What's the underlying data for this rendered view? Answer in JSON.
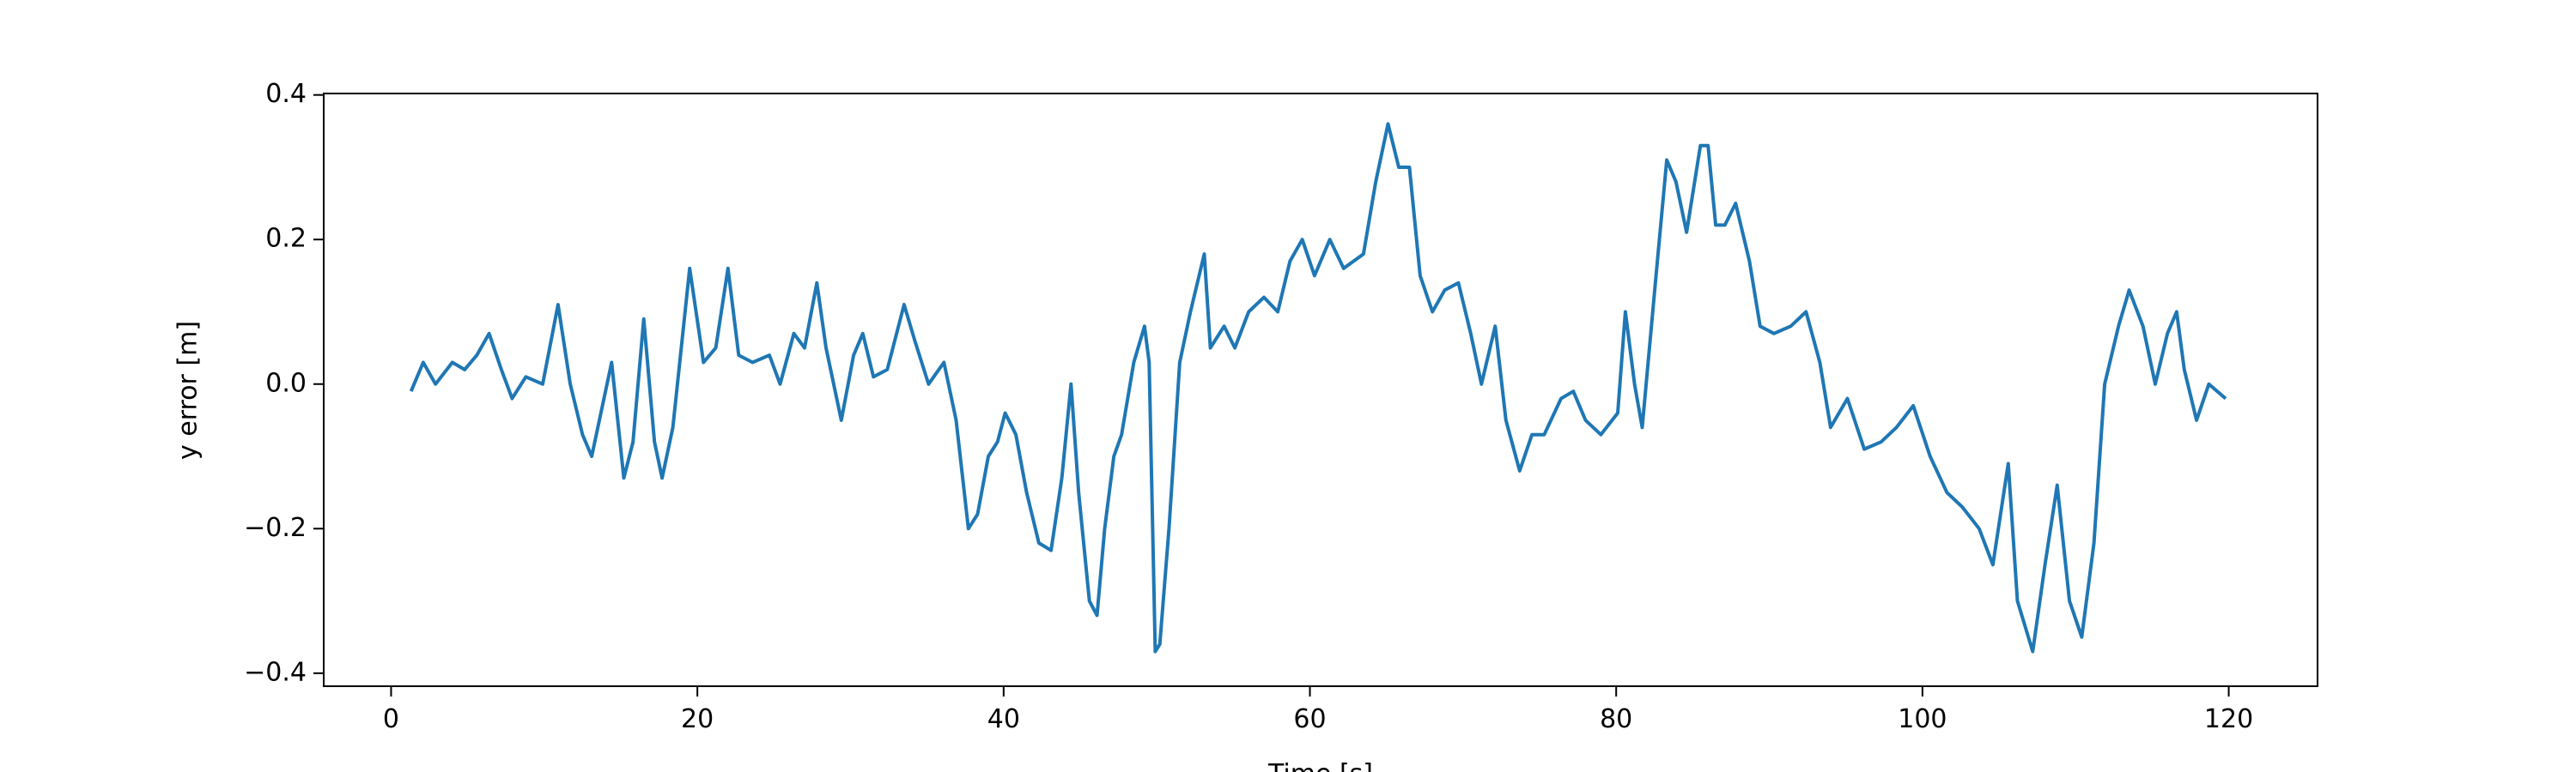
{
  "chart_data": {
    "type": "line",
    "xlabel": "Time [s]",
    "ylabel": "y error [m]",
    "x": [
      1.3,
      2.1,
      2.9,
      4,
      4.8,
      5.6,
      6.4,
      7.2,
      7.9,
      8.8,
      9.9,
      10.9,
      11.7,
      12.5,
      13.1,
      13.7,
      14.4,
      15.2,
      15.8,
      16.5,
      17.2,
      17.7,
      18.4,
      19.5,
      20.4,
      21.2,
      22,
      22.7,
      23.6,
      24.7,
      25.4,
      26.3,
      27,
      27.8,
      28.4,
      29.4,
      30.2,
      30.8,
      31.5,
      32.4,
      33.5,
      34.2,
      35.1,
      36.1,
      36.9,
      37.7,
      38.3,
      39,
      39.6,
      40.1,
      40.8,
      41.5,
      42.3,
      43.1,
      43.8,
      44.4,
      44.9,
      45.6,
      46.1,
      46.6,
      47.2,
      47.7,
      48.5,
      49.2,
      49.5,
      49.9,
      50.2,
      50.8,
      51.5,
      52.2,
      53.1,
      53.5,
      54.4,
      55.1,
      56,
      57,
      57.9,
      58.7,
      59.5,
      60.3,
      61.3,
      62.2,
      63.5,
      64.3,
      65.1,
      65.8,
      66.5,
      67.2,
      68,
      68.8,
      69.7,
      70.5,
      71.2,
      72.1,
      72.8,
      73.7,
      74.5,
      75.3,
      76.4,
      77.2,
      78,
      79,
      80.1,
      80.6,
      81.2,
      81.7,
      82.6,
      83.3,
      83.9,
      84.6,
      85.5,
      86,
      86.5,
      87.1,
      87.8,
      88.7,
      89.4,
      90.3,
      91.4,
      92.4,
      93.3,
      94,
      95.1,
      96.2,
      97.3,
      98.3,
      99.4,
      100.5,
      101.6,
      102.6,
      103.7,
      104.6,
      105.6,
      106.2,
      107.2,
      108,
      108.8,
      109.6,
      110.4,
      111.2,
      111.9,
      112.8,
      113.5,
      114.4,
      115.2,
      116,
      116.6,
      117.1,
      117.9,
      118.7,
      119.8
    ],
    "series": [
      {
        "color": "#1f77b4",
        "values": [
          -0.01,
          0.03,
          0.0,
          0.03,
          0.02,
          0.04,
          0.07,
          0.02,
          -0.02,
          0.01,
          0.0,
          0.11,
          0.0,
          -0.07,
          -0.1,
          -0.04,
          0.03,
          -0.13,
          -0.08,
          0.09,
          -0.08,
          -0.13,
          -0.06,
          0.16,
          0.03,
          0.05,
          0.16,
          0.04,
          0.03,
          0.04,
          0.0,
          0.07,
          0.05,
          0.14,
          0.05,
          -0.05,
          0.04,
          0.07,
          0.01,
          0.02,
          0.11,
          0.06,
          0.0,
          0.03,
          -0.05,
          -0.2,
          -0.18,
          -0.1,
          -0.08,
          -0.04,
          -0.07,
          -0.15,
          -0.22,
          -0.23,
          -0.13,
          0.0,
          -0.15,
          -0.3,
          -0.32,
          -0.2,
          -0.1,
          -0.07,
          0.03,
          0.08,
          0.03,
          -0.37,
          -0.36,
          -0.2,
          0.03,
          0.1,
          0.18,
          0.05,
          0.08,
          0.05,
          0.1,
          0.12,
          0.1,
          0.17,
          0.2,
          0.15,
          0.2,
          0.16,
          0.18,
          0.28,
          0.36,
          0.3,
          0.3,
          0.15,
          0.1,
          0.13,
          0.14,
          0.07,
          0.0,
          0.08,
          -0.05,
          -0.12,
          -0.07,
          -0.07,
          -0.02,
          -0.01,
          -0.05,
          -0.07,
          -0.04,
          0.1,
          0.0,
          -0.06,
          0.15,
          0.31,
          0.28,
          0.21,
          0.33,
          0.33,
          0.22,
          0.22,
          0.25,
          0.17,
          0.08,
          0.07,
          0.08,
          0.1,
          0.03,
          -0.06,
          -0.02,
          -0.09,
          -0.08,
          -0.06,
          -0.03,
          -0.1,
          -0.15,
          -0.17,
          -0.2,
          -0.25,
          -0.11,
          -0.3,
          -0.37,
          -0.25,
          -0.14,
          -0.3,
          -0.35,
          -0.22,
          0.0,
          0.08,
          0.13,
          0.08,
          0.0,
          0.07,
          0.1,
          0.02,
          -0.05,
          0.0,
          -0.02
        ]
      }
    ],
    "xlim": [
      -4.4,
      125.8
    ],
    "ylim": [
      -0.418,
      0.402
    ],
    "xticks": [
      0,
      20,
      40,
      60,
      80,
      100,
      120
    ],
    "yticks": [
      {
        "value": -0.4,
        "label": "−0.4"
      },
      {
        "value": -0.2,
        "label": "−0.2"
      },
      {
        "value": 0,
        "label": "0.0"
      },
      0.2,
      0.4
    ],
    "grid": false
  }
}
